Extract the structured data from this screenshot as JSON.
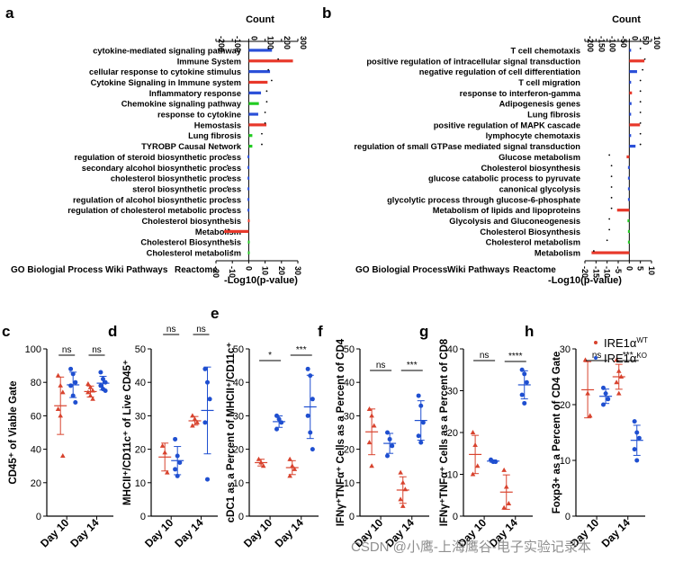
{
  "panels": {
    "a": {
      "letter": "a",
      "count_label": "Count",
      "count_ticks": [
        "-200",
        "-100",
        "0",
        "100",
        "200",
        "300"
      ],
      "p_ticks": [
        "-20",
        "-10",
        "0",
        "10",
        "20",
        "30"
      ],
      "p_label": "-Log10(p-value)",
      "legend": {
        "go": "GO Biologial Process",
        "wiki": "Wiki Pathways",
        "reactome": "Reactome"
      },
      "terms": [
        {
          "label": "cytokine-mediated signaling pathway",
          "count": 142,
          "logp": 12,
          "src": "go"
        },
        {
          "label": "Immune System",
          "count": 270,
          "logp": 18,
          "src": "reactome"
        },
        {
          "label": "cellular response to cytokine stimulus",
          "count": 130,
          "logp": 12,
          "src": "go"
        },
        {
          "label": "Cytokine Signaling in Immune system",
          "count": 115,
          "logp": 14,
          "src": "reactome"
        },
        {
          "label": "Inflammatory response",
          "count": 75,
          "logp": 11,
          "src": "go"
        },
        {
          "label": "Chemokine signaling pathway",
          "count": 62,
          "logp": 11,
          "src": "wiki"
        },
        {
          "label": "response to cytokine",
          "count": 58,
          "logp": 10,
          "src": "go"
        },
        {
          "label": "Hemostasis",
          "count": 108,
          "logp": 10,
          "src": "reactome"
        },
        {
          "label": "Lung fibrosis",
          "count": 22,
          "logp": 8,
          "src": "wiki"
        },
        {
          "label": "TYROBP Causal Network",
          "count": 22,
          "logp": 8,
          "src": "wiki"
        },
        {
          "label": "regulation of steroid biosynthetic process",
          "count": -7,
          "logp": -13,
          "src": "go"
        },
        {
          "label": "secondary alcohol biosynthetic process",
          "count": -7,
          "logp": -13,
          "src": "go"
        },
        {
          "label": "cholesterol biosynthetic process",
          "count": -7,
          "logp": -13,
          "src": "go"
        },
        {
          "label": "sterol biosynthetic process",
          "count": -7,
          "logp": -13,
          "src": "go"
        },
        {
          "label": "regulation of alcohol biosynthetic process",
          "count": -7,
          "logp": -13,
          "src": "go"
        },
        {
          "label": "regulation of cholesterol metabolic process",
          "count": -7,
          "logp": -13,
          "src": "go"
        },
        {
          "label": "Cholesterol biosynthesis",
          "count": -5,
          "logp": -11,
          "src": "reactome"
        },
        {
          "label": "Metabolism",
          "count": -150,
          "logp": -12,
          "src": "reactome"
        },
        {
          "label": "Cholesterol Biosynthesis",
          "count": -5,
          "logp": -11,
          "src": "wiki"
        },
        {
          "label": "Cholesterol metabolism",
          "count": -5,
          "logp": -10,
          "src": "wiki"
        }
      ]
    },
    "b": {
      "letter": "b",
      "count_label": "Count",
      "count_ticks": [
        "-200",
        "-150",
        "-100",
        "-50",
        "0",
        "50",
        "100"
      ],
      "p_ticks": [
        "-20",
        "-15",
        "-10",
        "-5",
        "0",
        "5",
        "10"
      ],
      "p_label": "-Log10(p-value)",
      "legend": {
        "go": "GO Biologial Process",
        "wiki": "Wiki Pathways",
        "reactome": "Reactome"
      },
      "terms": [
        {
          "label": "T cell chemotaxis",
          "count": 5,
          "logp": 5,
          "src": "go"
        },
        {
          "label": "positive regulation of intracellular signal transduction",
          "count": 68,
          "logp": 7,
          "src": "reactome"
        },
        {
          "label": "negative regulation of cell differentiation",
          "count": 35,
          "logp": 6,
          "src": "go"
        },
        {
          "label": "T cell migration",
          "count": 8,
          "logp": 5,
          "src": "go"
        },
        {
          "label": "response to interferon-gamma",
          "count": 12,
          "logp": 5,
          "src": "reactome"
        },
        {
          "label": "Adipogenesis genes",
          "count": 10,
          "logp": 5,
          "src": "go"
        },
        {
          "label": "Lung fibrosis",
          "count": 6,
          "logp": 5,
          "src": "go"
        },
        {
          "label": "positive regulation of MAPK cascade",
          "count": 48,
          "logp": 5,
          "src": "reactome"
        },
        {
          "label": "lymphocyte chemotaxis",
          "count": 8,
          "logp": 5,
          "src": "go"
        },
        {
          "label": "regulation of small GTPase mediated signal transduction",
          "count": 28,
          "logp": 5,
          "src": "go"
        },
        {
          "label": "Glucose metabolism",
          "count": -12,
          "logp": -9,
          "src": "reactome"
        },
        {
          "label": "Cholesterol biosynthesis",
          "count": -6,
          "logp": -8,
          "src": "go"
        },
        {
          "label": "glucose catabolic process to pyruvate",
          "count": -6,
          "logp": -8,
          "src": "go"
        },
        {
          "label": "canonical glycolysis",
          "count": -6,
          "logp": -8,
          "src": "go"
        },
        {
          "label": "glycolytic process through glucose-6-phosphate",
          "count": -6,
          "logp": -8,
          "src": "go"
        },
        {
          "label": "Metabolism of lipids and lipoproteins",
          "count": -55,
          "logp": -8,
          "src": "reactome"
        },
        {
          "label": "Glycolysis and Gluconeogenesis",
          "count": -8,
          "logp": -9,
          "src": "wiki"
        },
        {
          "label": "Cholesterol Biosynthesis",
          "count": -6,
          "logp": -9,
          "src": "wiki"
        },
        {
          "label": "Cholesterol metabolism",
          "count": -6,
          "logp": -10,
          "src": "wiki"
        },
        {
          "label": "Metabolism",
          "count": -170,
          "logp": -16,
          "src": "reactome"
        }
      ]
    },
    "c": {
      "letter": "c",
      "ylabel": "CD45⁺ of Viable Gate",
      "ymin": 0,
      "ymax": 100,
      "ticks": [
        "0",
        "20",
        "40",
        "60",
        "80",
        "100"
      ],
      "groups": [
        "Day 10",
        "Day 14"
      ],
      "sig": [
        "ns",
        "ns"
      ],
      "wt": [
        [
          84,
          78,
          74,
          64,
          60,
          36
        ],
        [
          79,
          77,
          75,
          74,
          72,
          70
        ]
      ],
      "ko": [
        [
          88,
          85,
          80,
          78,
          72,
          68
        ],
        [
          86,
          82,
          80,
          78,
          76,
          75
        ]
      ]
    },
    "d": {
      "letter": "d",
      "ylabel": "MHCII⁺/CD11c⁺ of Live CD45⁺",
      "ymin": 0,
      "ymax": 50,
      "ticks": [
        "0",
        "10",
        "20",
        "30",
        "40",
        "50"
      ],
      "groups": [
        "Day 10",
        "Day 14"
      ],
      "sig": [
        "ns",
        "ns"
      ],
      "wt": [
        [
          21,
          19,
          13
        ],
        [
          30,
          29,
          28,
          27
        ]
      ],
      "ko": [
        [
          23,
          18,
          16,
          14,
          12
        ],
        [
          44,
          40,
          35,
          28,
          11
        ]
      ]
    },
    "e": {
      "letter": "e",
      "ylabel": "cDC1 as a Percent of MHCII⁺/CD11c⁺",
      "ymin": 0,
      "ymax": 50,
      "ticks": [
        "0",
        "10",
        "20",
        "30",
        "40",
        "50"
      ],
      "groups": [
        "Day 10",
        "Day 14"
      ],
      "sig": [
        "*",
        "***"
      ],
      "wt": [
        [
          17,
          16,
          15
        ],
        [
          17,
          15,
          14,
          12
        ]
      ],
      "ko": [
        [
          30,
          29,
          28,
          26
        ],
        [
          44,
          42,
          35,
          30,
          25,
          20
        ]
      ]
    },
    "f": {
      "letter": "f",
      "ylabel": "IFNγ⁺TNFα⁺ Cells as a Percent of CD4",
      "ymin": 0,
      "ymax": 50,
      "ticks": [
        "0",
        "10",
        "20",
        "30",
        "40",
        "50"
      ],
      "groups": [
        "Day 10",
        "Day 14"
      ],
      "sig": [
        "ns",
        "***"
      ],
      "wt": [
        [
          32,
          30,
          27,
          22,
          15
        ],
        [
          13,
          10,
          8,
          5,
          3
        ]
      ],
      "ko": [
        [
          25,
          23,
          21,
          18
        ],
        [
          36,
          33,
          28,
          24,
          22
        ]
      ]
    },
    "g": {
      "letter": "g",
      "ylabel": "IFNγ⁺TNFα⁺ Cells as a Percent of CD8",
      "ymin": 0,
      "ymax": 40,
      "ticks": [
        "0",
        "10",
        "20",
        "30",
        "40"
      ],
      "groups": [
        "Day 10",
        "Day 14"
      ],
      "sig": [
        "ns",
        "****"
      ],
      "wt": [
        [
          20,
          17,
          12,
          10
        ],
        [
          11,
          7,
          3,
          2
        ]
      ],
      "ko": [
        [
          13.5,
          13,
          13
        ],
        [
          35,
          34,
          32,
          29,
          27
        ]
      ]
    },
    "h": {
      "letter": "h",
      "ylabel": "Foxp3+ as a Percent of CD4 Gate",
      "ymin": 0,
      "ymax": 30,
      "ticks": [
        "0",
        "10",
        "20",
        "30"
      ],
      "groups": [
        "Day 10",
        "Day 14"
      ],
      "sig": [
        "ns",
        "***"
      ],
      "wt": [
        [
          28,
          22,
          18
        ],
        [
          28,
          26,
          25,
          24,
          22
        ]
      ],
      "ko": [
        [
          23,
          22,
          21,
          20
        ],
        [
          17,
          15,
          14,
          12,
          10
        ]
      ]
    }
  },
  "legend_h": {
    "wt": "IRE1α",
    "wt_sup": "WT",
    "ko": "IRE1α",
    "ko_sup": "KO"
  },
  "watermark": "CSDN @小鹰-上海鹰谷-电子实验记录本",
  "colors": {
    "go": "#2a4fd8",
    "wiki": "#22cc22",
    "reactome": "#e8382a",
    "wt": "#d8432e",
    "ko": "#1f4fd0"
  }
}
